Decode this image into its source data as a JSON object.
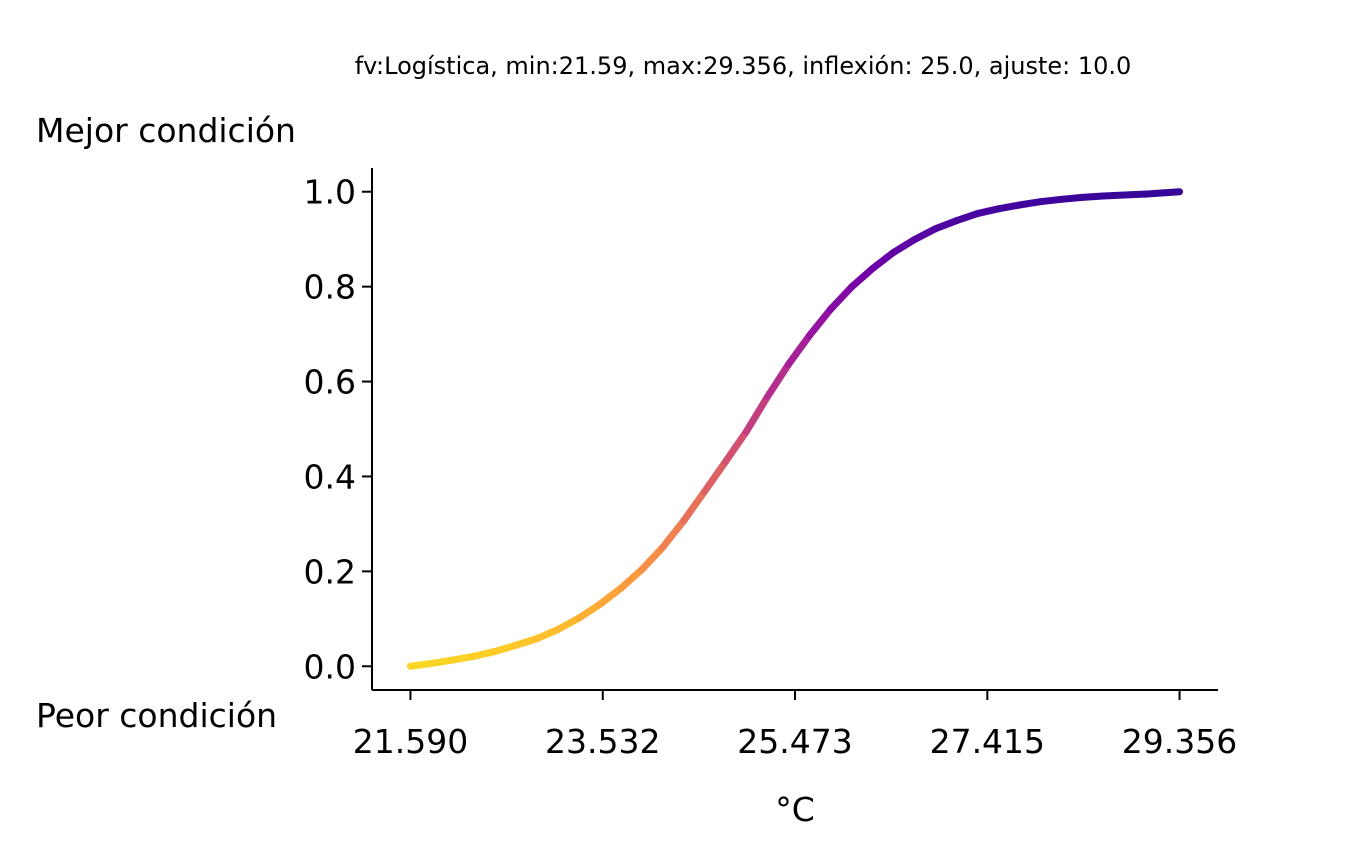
{
  "chart_data": {
    "type": "line",
    "title": "fv:Logística, min:21.59, max:29.356, inflexión: 25.0, ajuste: 10.0",
    "xlabel": "°C",
    "ylabel": "",
    "top_label": "Mejor condición",
    "bottom_label": "Peor condición",
    "function": "logistic",
    "min": 21.59,
    "max": 29.356,
    "inflection": 25.0,
    "adjust": 10.0,
    "xlim": [
      21.2017,
      29.7443
    ],
    "ylim": [
      -0.05,
      1.05
    ],
    "x_ticks": [
      21.59,
      23.532,
      25.473,
      27.415,
      29.356
    ],
    "x_tick_labels": [
      "21.590",
      "23.532",
      "25.473",
      "27.415",
      "29.356"
    ],
    "y_ticks": [
      0.0,
      0.2,
      0.4,
      0.6,
      0.8,
      1.0
    ],
    "y_tick_labels": [
      "0.0",
      "0.2",
      "0.4",
      "0.6",
      "0.8",
      "1.0"
    ],
    "colormap": "plasma_r",
    "colormap_stops": [
      "#f0f921",
      "#fdca26",
      "#fb9f3a",
      "#ed7953",
      "#d8576b",
      "#bd3786",
      "#9c179e",
      "#7201a8",
      "#46039f",
      "#0d0887"
    ],
    "series": [
      {
        "x": [
          21.59,
          21.802,
          22.016,
          22.228,
          22.44,
          22.651,
          22.863,
          23.075,
          23.287,
          23.5,
          23.712,
          23.923,
          24.135,
          24.347,
          24.559,
          24.771,
          24.983,
          25.195,
          25.407,
          25.619,
          25.831,
          26.043,
          26.255,
          26.467,
          26.679,
          26.891,
          27.103,
          27.315,
          27.527,
          27.739,
          27.951,
          28.163,
          28.375,
          28.587,
          28.799,
          29.011,
          29.356
        ],
        "y": [
          0.0,
          0.006,
          0.013,
          0.021,
          0.031,
          0.044,
          0.058,
          0.077,
          0.101,
          0.13,
          0.164,
          0.203,
          0.25,
          0.306,
          0.368,
          0.431,
          0.495,
          0.568,
          0.636,
          0.697,
          0.752,
          0.799,
          0.838,
          0.872,
          0.899,
          0.922,
          0.939,
          0.954,
          0.964,
          0.972,
          0.979,
          0.984,
          0.988,
          0.991,
          0.993,
          0.995,
          1.0
        ]
      }
    ]
  }
}
